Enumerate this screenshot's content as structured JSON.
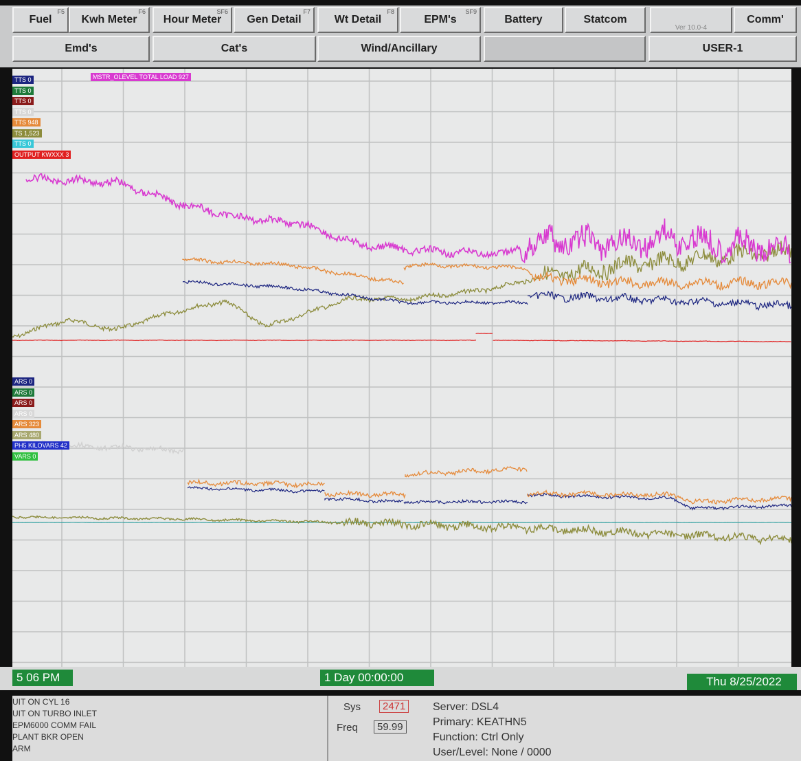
{
  "toolbar": {
    "row1": [
      {
        "label": "Fuel",
        "key": "F5"
      },
      {
        "label": "Kwh Meter",
        "key": "F6"
      },
      {
        "label": "Hour Meter",
        "key": "SF6"
      },
      {
        "label": "Gen Detail",
        "key": "F7"
      },
      {
        "label": "Wt Detail",
        "key": "F8"
      },
      {
        "label": "EPM's",
        "key": "SF9"
      },
      {
        "label": "Battery"
      },
      {
        "label": "Statcom"
      },
      {
        "label": "Ver 10.0-4"
      },
      {
        "label": "Comm'"
      }
    ],
    "row2": [
      "Emd's",
      "Cat's",
      "Wind/Ancillary",
      "USER-1"
    ]
  },
  "upper_header": "MSTR_OLEVEL TOTAL LOAD 927",
  "upper_legend": [
    {
      "label": "TTS 0",
      "color": "#1c2580"
    },
    {
      "label": "TTS 0",
      "color": "#1e7a3a"
    },
    {
      "label": "TTS 0",
      "color": "#8a1b1b"
    },
    {
      "label": "TTS 0",
      "color": "#d8d8d8"
    },
    {
      "label": "TTS 948",
      "color": "#e58a3a"
    },
    {
      "label": "TS 1,523",
      "color": "#8c8c3c"
    },
    {
      "label": "TTS 0",
      "color": "#38c8d8"
    },
    {
      "label": "OUTPUT KWXXX 3",
      "color": "#e02020"
    }
  ],
  "lower_legend": [
    {
      "label": "ARS 0",
      "color": "#1c2580"
    },
    {
      "label": "ARS 0",
      "color": "#1e7a3a"
    },
    {
      "label": "ARS 0",
      "color": "#8a1b1b"
    },
    {
      "label": "ARS 0",
      "color": "#d8d8d8"
    },
    {
      "label": "ARS 323",
      "color": "#e58a3a"
    },
    {
      "label": "ARS 480",
      "color": "#a8a870"
    },
    {
      "label": "PH5 KILOVARS 42",
      "color": "#2230c8"
    },
    {
      "label": "VARS 0",
      "color": "#30c040"
    }
  ],
  "status": {
    "time": "5 06 PM",
    "span": "1 Day 00:00:00",
    "date": "Thu 8/25/2022"
  },
  "alarms": [
    "UIT ON CYL 16",
    "UIT ON TURBO INLET",
    "EPM6000 COMM FAIL",
    "PLANT BKR OPEN",
    "ARM"
  ],
  "info": {
    "sys_label": "Sys",
    "sys": "2471",
    "freq_label": "Freq",
    "freq": "59.99",
    "server": "Server: DSL4",
    "primary": "Primary: KEATHN5",
    "function": "Function: Ctrl Only",
    "user": "User/Level: None / 0000"
  }
}
